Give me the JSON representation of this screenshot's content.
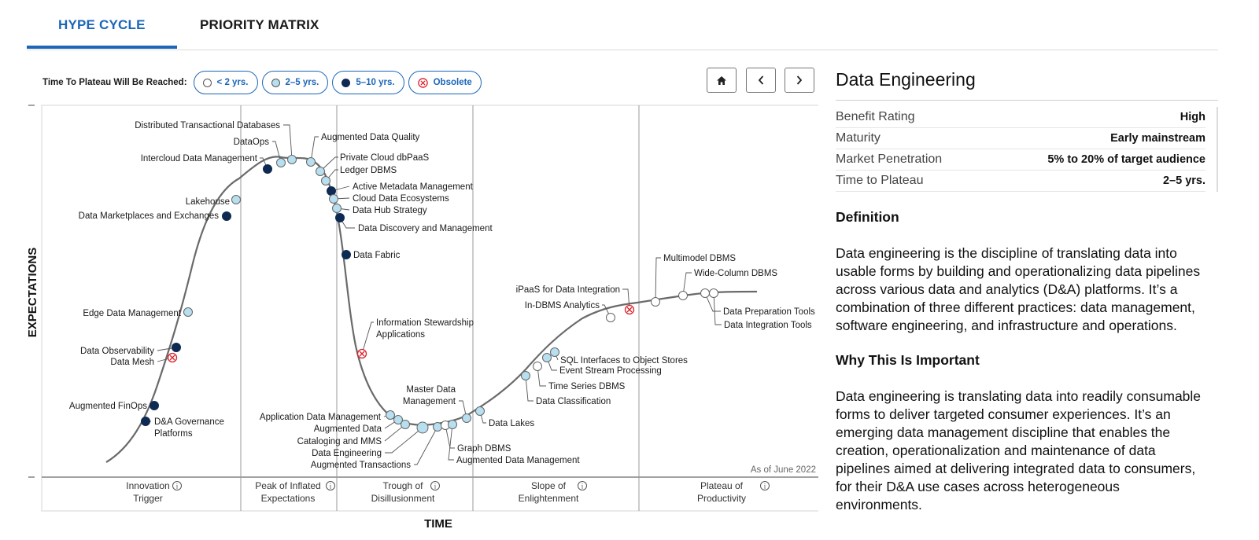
{
  "tabs": [
    "HYPE CYCLE",
    "PRIORITY MATRIX"
  ],
  "legend": {
    "label": "Time To Plateau Will Be Reached:",
    "items": [
      {
        "label": "< 2 yrs.",
        "kind": "white"
      },
      {
        "label": "2–5 yrs.",
        "kind": "light"
      },
      {
        "label": "5–10 yrs.",
        "kind": "dark"
      },
      {
        "label": "Obsolete",
        "kind": "obsolete"
      }
    ]
  },
  "nav": {
    "home": "home-icon",
    "prev": "chevron-left-icon",
    "next": "chevron-right-icon"
  },
  "colors": {
    "accent": "#1b66b8",
    "white_dot": "#ffffff",
    "light_dot": "#b7dff0",
    "dark_dot": "#0f2a52",
    "obsolete": "#d9212b",
    "curve": "#666666"
  },
  "hype_cycle": {
    "y_axis": "EXPECTATIONS",
    "x_axis": "TIME",
    "as_of": "As of June 2022",
    "phases": [
      {
        "line1": "Innovation",
        "line2": "Trigger"
      },
      {
        "line1": "Peak of Inflated",
        "line2": "Expectations"
      },
      {
        "line1": "Trough of",
        "line2": "Disillusionment"
      },
      {
        "line1": "Slope of",
        "line2": "Enlightenment"
      },
      {
        "line1": "Plateau of",
        "line2": "Productivity"
      }
    ],
    "technologies": [
      {
        "name": "D&A Governance Platforms",
        "label": [
          "D&A Governance",
          "Platforms"
        ],
        "kind": "dark"
      },
      {
        "name": "Augmented FinOps",
        "label": [
          "Augmented FinOps"
        ],
        "kind": "dark"
      },
      {
        "name": "Data Mesh",
        "label": [
          "Data Mesh"
        ],
        "kind": "obsolete"
      },
      {
        "name": "Data Observability",
        "label": [
          "Data Observability"
        ],
        "kind": "dark"
      },
      {
        "name": "Edge Data Management",
        "label": [
          "Edge Data Management"
        ],
        "kind": "light"
      },
      {
        "name": "Data Marketplaces and Exchanges",
        "label": [
          "Data Marketplaces and Exchanges"
        ],
        "kind": "dark"
      },
      {
        "name": "Lakehouse",
        "label": [
          "Lakehouse"
        ],
        "kind": "light"
      },
      {
        "name": "Intercloud Data Management",
        "label": [
          "Intercloud Data Management"
        ],
        "kind": "dark"
      },
      {
        "name": "DataOps",
        "label": [
          "DataOps"
        ],
        "kind": "light"
      },
      {
        "name": "Distributed Transactional Databases",
        "label": [
          "Distributed Transactional Databases"
        ],
        "kind": "light"
      },
      {
        "name": "Augmented Data Quality",
        "label": [
          "Augmented Data Quality"
        ],
        "kind": "light"
      },
      {
        "name": "Private Cloud dbPaaS",
        "label": [
          "Private Cloud dbPaaS"
        ],
        "kind": "light"
      },
      {
        "name": "Ledger DBMS",
        "label": [
          "Ledger DBMS"
        ],
        "kind": "light"
      },
      {
        "name": "Active Metadata Management",
        "label": [
          "Active Metadata Management"
        ],
        "kind": "dark"
      },
      {
        "name": "Cloud Data Ecosystems",
        "label": [
          "Cloud Data Ecosystems"
        ],
        "kind": "light"
      },
      {
        "name": "Data Hub Strategy",
        "label": [
          "Data Hub Strategy"
        ],
        "kind": "light"
      },
      {
        "name": "Data Discovery and Management",
        "label": [
          "Data Discovery and Management"
        ],
        "kind": "dark"
      },
      {
        "name": "Data Fabric",
        "label": [
          "Data Fabric"
        ],
        "kind": "dark"
      },
      {
        "name": "Information Stewardship Applications",
        "label": [
          "Information Stewardship",
          "Applications"
        ],
        "kind": "obsolete"
      },
      {
        "name": "Application Data Management",
        "label": [
          "Application Data Management"
        ],
        "kind": "light"
      },
      {
        "name": "Augmented Data",
        "label": [
          "Augmented Data"
        ],
        "kind": "light"
      },
      {
        "name": "Cataloging and MMS",
        "label": [
          "Cataloging and MMS"
        ],
        "kind": "light"
      },
      {
        "name": "Data Engineering",
        "label": [
          "Data Engineering"
        ],
        "kind": "light"
      },
      {
        "name": "Augmented Transactions",
        "label": [
          "Augmented Transactions"
        ],
        "kind": "light"
      },
      {
        "name": "Graph DBMS",
        "label": [
          "Graph DBMS"
        ],
        "kind": "white"
      },
      {
        "name": "Augmented Data Management",
        "label": [
          "Augmented Data Management"
        ],
        "kind": "light"
      },
      {
        "name": "Master Data Management",
        "label": [
          "Master Data",
          "Management"
        ],
        "kind": "light"
      },
      {
        "name": "Data Lakes",
        "label": [
          "Data Lakes"
        ],
        "kind": "light"
      },
      {
        "name": "Data Classification",
        "label": [
          "Data Classification"
        ],
        "kind": "light"
      },
      {
        "name": "Time Series DBMS",
        "label": [
          "Time Series DBMS"
        ],
        "kind": "white"
      },
      {
        "name": "Event Stream Processing",
        "label": [
          "Event Stream Processing"
        ],
        "kind": "light"
      },
      {
        "name": "SQL Interfaces to Object Stores",
        "label": [
          "SQL Interfaces to Object Stores"
        ],
        "kind": "light"
      },
      {
        "name": "In-DBMS Analytics",
        "label": [
          "In-DBMS Analytics"
        ],
        "kind": "white"
      },
      {
        "name": "iPaaS for Data Integration",
        "label": [
          "iPaaS for Data Integration"
        ],
        "kind": "obsolete"
      },
      {
        "name": "Multimodel DBMS",
        "label": [
          "Multimodel DBMS"
        ],
        "kind": "white"
      },
      {
        "name": "Wide-Column DBMS",
        "label": [
          "Wide-Column DBMS"
        ],
        "kind": "white"
      },
      {
        "name": "Data Preparation Tools",
        "label": [
          "Data Preparation Tools"
        ],
        "kind": "white"
      },
      {
        "name": "Data Integration Tools",
        "label": [
          "Data Integration Tools"
        ],
        "kind": "white"
      }
    ]
  },
  "details": {
    "title": "Data Engineering",
    "ratings": [
      {
        "key": "Benefit Rating",
        "value": "High"
      },
      {
        "key": "Maturity",
        "value": "Early mainstream"
      },
      {
        "key": "Market Penetration",
        "value": "5% to 20% of target audience"
      },
      {
        "key": "Time to Plateau",
        "value": "2–5 yrs."
      }
    ],
    "definition_heading": "Definition",
    "definition": "Data engineering is the discipline of translating data into usable forms by building and operationalizing data pipelines across various data and analytics (D&A) platforms. It’s a combination of three different practices: data management, software engineering, and infrastructure and operations.",
    "why_heading": "Why This Is Important",
    "why": "Data engineering is translating data into readily consumable forms to deliver targeted consumer experiences. It’s an emerging data management discipline that enables the creation, operationalization and maintenance of data pipelines aimed at delivering integrated data to consumers, for their D&A use cases across heterogeneous environments."
  }
}
